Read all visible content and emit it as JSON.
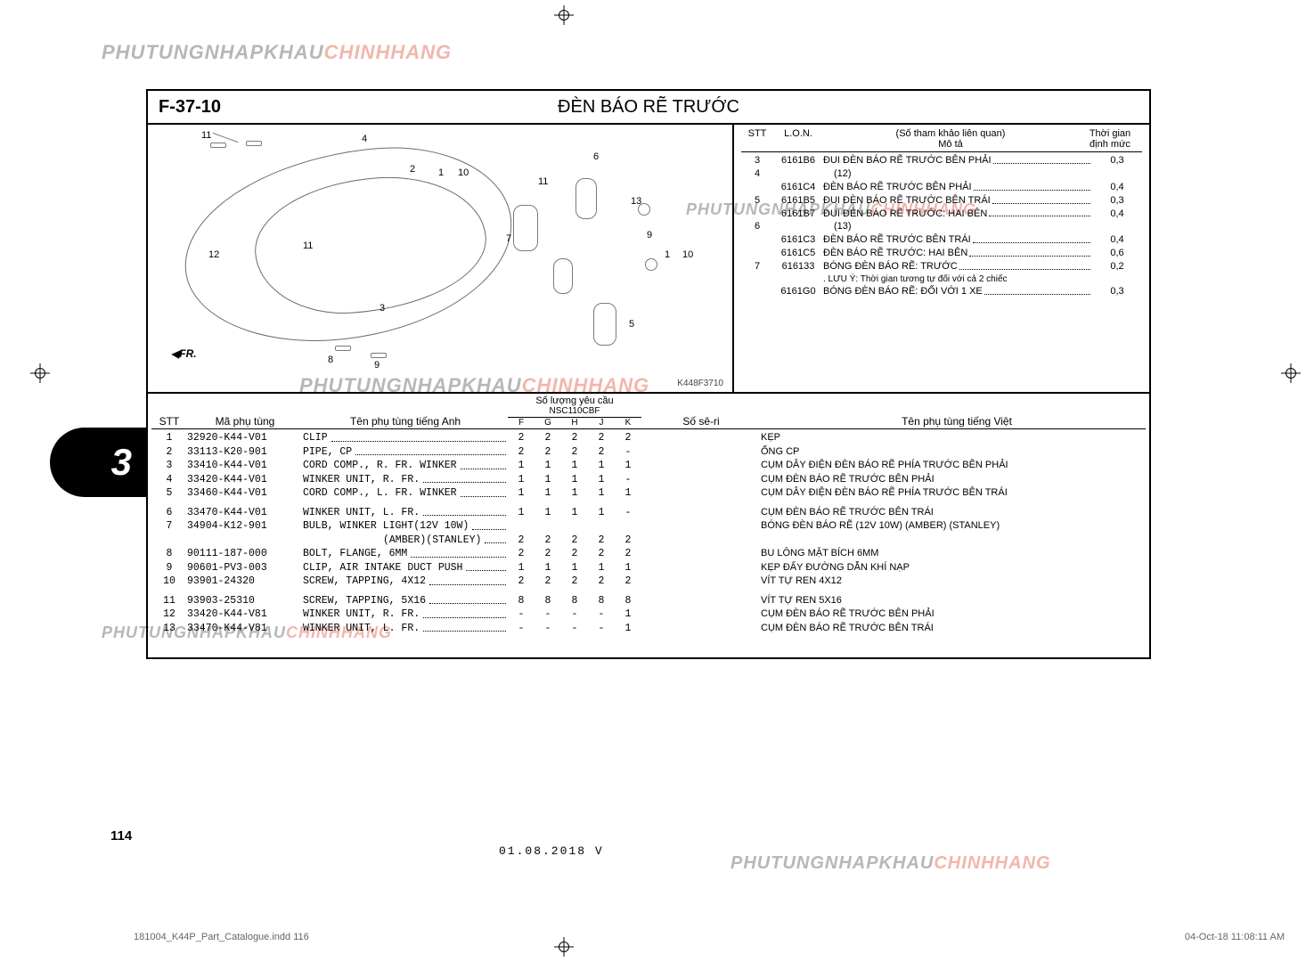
{
  "watermark": {
    "part_a": "PHUTUNGNHAPKHAU",
    "part_b": "CHINHHANG"
  },
  "header": {
    "code": "F-37-10",
    "title": "ĐÈN BÁO RẼ TRƯỚC"
  },
  "diagram": {
    "ref": "K448F3710",
    "fr_label": "FR.",
    "callouts": [
      "1",
      "2",
      "3",
      "4",
      "5",
      "6",
      "7",
      "8",
      "9",
      "10",
      "11",
      "12",
      "13"
    ]
  },
  "notes": {
    "headers": {
      "stt": "STT",
      "lon": "L.O.N.",
      "desc_top": "(Số tham khảo liên quan)",
      "desc_bottom": "Mô tả",
      "time": "Thời gian\nđịnh mức"
    },
    "rows": [
      {
        "stt": "3",
        "lon": "6161B6",
        "desc": "ĐUI ĐÈN BÁO RẼ TRƯỚC BÊN PHẢI",
        "time": "0,3"
      },
      {
        "stt": "4",
        "lon": "",
        "desc": "(12)",
        "time": "",
        "sub": true
      },
      {
        "stt": "",
        "lon": "6161C4",
        "desc": "ĐÈN BÁO RẼ TRƯỚC BÊN PHẢI",
        "time": "0,4"
      },
      {
        "stt": "5",
        "lon": "6161B5",
        "desc": "ĐUI ĐÈN BÁO RẼ TRƯỚC BÊN TRÁI",
        "time": "0,3"
      },
      {
        "stt": "",
        "lon": "6161B7",
        "desc": "ĐUI ĐÈN BÁO RẼ TRƯỚC: HAI BÊN",
        "time": "0,4"
      },
      {
        "stt": "6",
        "lon": "",
        "desc": "(13)",
        "time": "",
        "sub": true
      },
      {
        "stt": "",
        "lon": "6161C3",
        "desc": "ĐÈN BÁO RẼ TRƯỚC BÊN TRÁI",
        "time": "0,4"
      },
      {
        "stt": "",
        "lon": "6161C5",
        "desc": "ĐÈN BÁO RẼ TRƯỚC: HAI BÊN",
        "time": "0,6"
      },
      {
        "stt": "7",
        "lon": "616133",
        "desc": "BÓNG ĐÈN BÁO RẼ: TRƯỚC",
        "time": "0,2"
      },
      {
        "stt": "",
        "lon": "",
        "desc": ". LƯU Ý: Thời gian tương tự đối với cả 2 chiếc",
        "time": "",
        "plain": true
      },
      {
        "stt": "",
        "lon": "6161G0",
        "desc": "BÓNG ĐÈN BÁO RẼ: ĐỐI VỚI 1 XE",
        "time": "0,3"
      }
    ]
  },
  "table": {
    "headers": {
      "stt": "STT",
      "code": "Mã phụ tùng",
      "en": "Tên phụ tùng tiếng Anh",
      "qty_title": "Số lượng yêu cầu",
      "qty_model": "NSC110CBF",
      "letters": [
        "F",
        "G",
        "H",
        "J",
        "K"
      ],
      "serial": "Số sê-ri",
      "vi": "Tên phụ tùng tiếng Việt"
    },
    "groups": [
      [
        {
          "stt": "1",
          "code": "32920-K44-V01",
          "en": "CLIP",
          "qty": [
            "2",
            "2",
            "2",
            "2",
            "2"
          ],
          "vi": "KẸP"
        },
        {
          "stt": "2",
          "code": "33113-K20-901",
          "en": "PIPE, CP",
          "qty": [
            "2",
            "2",
            "2",
            "2",
            "-"
          ],
          "vi": "ỐNG CP"
        },
        {
          "stt": "3",
          "code": "33410-K44-V01",
          "en": "CORD COMP., R. FR. WINKER",
          "qty": [
            "1",
            "1",
            "1",
            "1",
            "1"
          ],
          "vi": "CỤM DÂY ĐIỆN ĐÈN BÁO RẼ PHÍA TRƯỚC BÊN PHẢI"
        },
        {
          "stt": "4",
          "code": "33420-K44-V01",
          "en": "WINKER UNIT, R. FR.",
          "qty": [
            "1",
            "1",
            "1",
            "1",
            "-"
          ],
          "vi": "CỤM ĐÈN BÁO RẼ TRƯỚC BÊN PHẢI"
        },
        {
          "stt": "5",
          "code": "33460-K44-V01",
          "en": "CORD COMP., L. FR. WINKER",
          "qty": [
            "1",
            "1",
            "1",
            "1",
            "1"
          ],
          "vi": "CỤM DÂY ĐIỆN ĐÈN BÁO RẼ PHÍA TRƯỚC BÊN TRÁI"
        }
      ],
      [
        {
          "stt": "6",
          "code": "33470-K44-V01",
          "en": "WINKER UNIT, L. FR.",
          "qty": [
            "1",
            "1",
            "1",
            "1",
            "-"
          ],
          "vi": "CỤM ĐÈN BÁO RẼ TRƯỚC BÊN TRÁI"
        },
        {
          "stt": "7",
          "code": "34904-K12-901",
          "en": "BULB, WINKER LIGHT(12V 10W)",
          "qty": [
            "",
            "",
            "",
            "",
            ""
          ],
          "vi": "BÓNG ĐÈN BÁO RẼ (12V 10W) (AMBER) (STANLEY)"
        },
        {
          "stt": "",
          "code": "",
          "en": "(AMBER)(STANLEY)",
          "qty": [
            "2",
            "2",
            "2",
            "2",
            "2"
          ],
          "vi": "",
          "indent": true
        },
        {
          "stt": "8",
          "code": "90111-187-000",
          "en": "BOLT, FLANGE, 6MM",
          "qty": [
            "2",
            "2",
            "2",
            "2",
            "2"
          ],
          "vi": "BU LÔNG MẶT BÍCH 6MM"
        },
        {
          "stt": "9",
          "code": "90601-PV3-003",
          "en": "CLIP, AIR INTAKE DUCT PUSH",
          "qty": [
            "1",
            "1",
            "1",
            "1",
            "1"
          ],
          "vi": "KẸP ĐẨY ĐƯỜNG DẪN KHÍ NẠP"
        },
        {
          "stt": "10",
          "code": "93901-24320",
          "en": "SCREW, TAPPING, 4X12",
          "qty": [
            "2",
            "2",
            "2",
            "2",
            "2"
          ],
          "vi": "VÍT TỰ REN 4X12"
        }
      ],
      [
        {
          "stt": "11",
          "code": "93903-25310",
          "en": "SCREW, TAPPING, 5X16",
          "qty": [
            "8",
            "8",
            "8",
            "8",
            "8"
          ],
          "vi": "VÍT TỰ REN 5X16"
        },
        {
          "stt": "12",
          "code": "33420-K44-V81",
          "en": "WINKER UNIT, R. FR.",
          "qty": [
            "-",
            "-",
            "-",
            "-",
            "1"
          ],
          "vi": "CỤM ĐÈN BÁO RẼ TRƯỚC BÊN PHẢI"
        },
        {
          "stt": "13",
          "code": "33470-K44-V81",
          "en": "WINKER UNIT, L. FR.",
          "qty": [
            "-",
            "-",
            "-",
            "-",
            "1"
          ],
          "vi": "CỤM ĐÈN BÁO RẼ TRƯỚC BÊN TRÁI"
        }
      ]
    ]
  },
  "section_tab": "3",
  "page_number": "114",
  "bottom_date": "01.08.2018    V",
  "footer": {
    "file": "181004_K44P_Part_Catalogue.indd   116",
    "stamp": "04-Oct-18   11:08:11 AM"
  }
}
